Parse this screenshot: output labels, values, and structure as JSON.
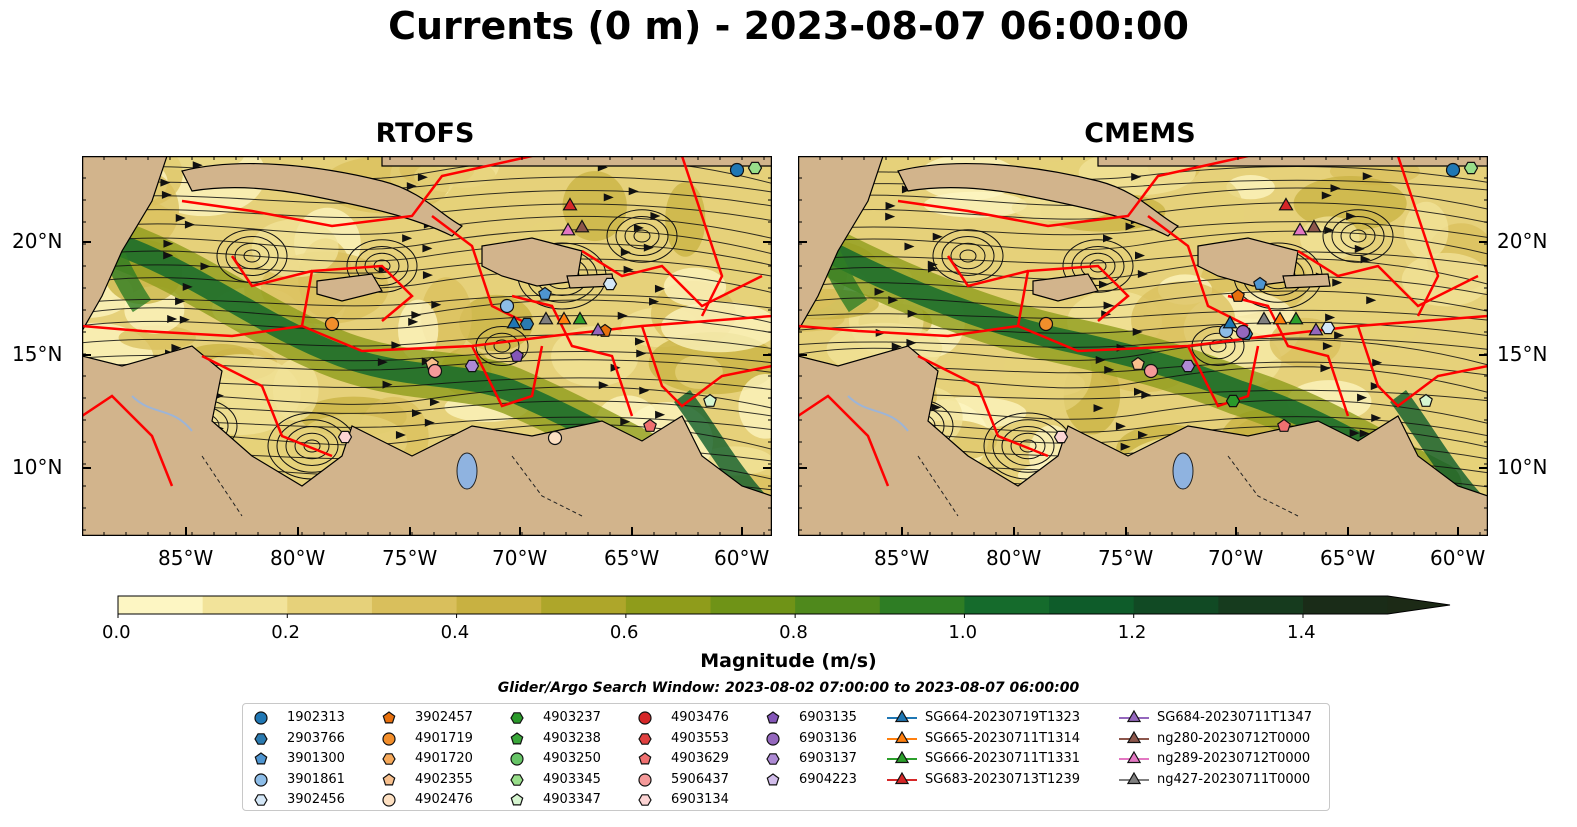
{
  "title": "Currents (0 m) - 2023-08-07 06:00:00",
  "panels": [
    {
      "title": "RTOFS"
    },
    {
      "title": "CMEMS"
    }
  ],
  "lat_labels": [
    "20°N",
    "15°N",
    "10°N"
  ],
  "lon_labels": [
    "85°W",
    "80°W",
    "75°W",
    "70°W",
    "65°W",
    "60°W"
  ],
  "colorbar": {
    "ticks": [
      "0.0",
      "0.2",
      "0.4",
      "0.6",
      "0.8",
      "1.0",
      "1.2",
      "1.4"
    ],
    "label": "Magnitude (m/s)",
    "colors": [
      "#fdf6c3",
      "#f2e39a",
      "#e6d17a",
      "#d9bf5c",
      "#c8b141",
      "#aea62a",
      "#8f9c1b",
      "#6f9317",
      "#4f891c",
      "#2e7d24",
      "#156b2c",
      "#0e5c2a",
      "#114a24",
      "#163b1e",
      "#1a2c18",
      "#1c2a16"
    ]
  },
  "search_window": "Glider/Argo Search Window: 2023-08-02 07:00:00 to 2023-08-07 06:00:00",
  "legend": {
    "argo": [
      {
        "id": "1902313",
        "marker": "circle",
        "color": "#1f77b4"
      },
      {
        "id": "2903766",
        "marker": "hexagon",
        "color": "#2a7ab0"
      },
      {
        "id": "3901300",
        "marker": "pentagon",
        "color": "#4e95d1"
      },
      {
        "id": "3901861",
        "marker": "circle",
        "color": "#8dbde8"
      },
      {
        "id": "3902456",
        "marker": "hexagon",
        "color": "#d4e7f7"
      },
      {
        "id": "3902457",
        "marker": "pentagon",
        "color": "#e8700d"
      },
      {
        "id": "4901719",
        "marker": "circle",
        "color": "#f28e2b"
      },
      {
        "id": "4901720",
        "marker": "hexagon",
        "color": "#f6a95a"
      },
      {
        "id": "4902355",
        "marker": "pentagon",
        "color": "#f8c08d"
      },
      {
        "id": "4902476",
        "marker": "circle",
        "color": "#fde0c2"
      },
      {
        "id": "4903237",
        "marker": "hexagon",
        "color": "#2a9a2a"
      },
      {
        "id": "4903238",
        "marker": "pentagon",
        "color": "#3aa83a"
      },
      {
        "id": "4903250",
        "marker": "circle",
        "color": "#66c466"
      },
      {
        "id": "4903345",
        "marker": "hexagon",
        "color": "#98de8a"
      },
      {
        "id": "4903347",
        "marker": "pentagon",
        "color": "#d6f5d0"
      },
      {
        "id": "4903476",
        "marker": "circle",
        "color": "#d62728"
      },
      {
        "id": "4903553",
        "marker": "hexagon",
        "color": "#e04040"
      },
      {
        "id": "4903629",
        "marker": "pentagon",
        "color": "#f07070"
      },
      {
        "id": "5906437",
        "marker": "circle",
        "color": "#f59a9a"
      },
      {
        "id": "6903134",
        "marker": "hexagon",
        "color": "#fcd4d4"
      },
      {
        "id": "6903135",
        "marker": "pentagon",
        "color": "#8456b8"
      },
      {
        "id": "6903136",
        "marker": "circle",
        "color": "#9467bd"
      },
      {
        "id": "6903137",
        "marker": "hexagon",
        "color": "#ad8ad4"
      },
      {
        "id": "6904223",
        "marker": "pentagon",
        "color": "#d2bdeb"
      }
    ],
    "gliders": [
      {
        "id": "SG664-20230719T1323",
        "color": "#1f77b4"
      },
      {
        "id": "SG665-20230711T1314",
        "color": "#ff7f0e"
      },
      {
        "id": "SG666-20230711T1331",
        "color": "#2ca02c"
      },
      {
        "id": "SG683-20230713T1239",
        "color": "#d62728"
      },
      {
        "id": "SG684-20230711T1347",
        "color": "#9467bd"
      },
      {
        "id": "ng280-20230712T0000",
        "color": "#8c564b"
      },
      {
        "id": "ng289-20230712T0000",
        "color": "#e377c2"
      },
      {
        "id": "ng427-20230711T0000",
        "color": "#7f7f7f"
      }
    ]
  },
  "map_colors": {
    "land": "#d2b48c",
    "lake": "#8fb3e0",
    "eez": "#ff0000",
    "coast": "#000000"
  }
}
